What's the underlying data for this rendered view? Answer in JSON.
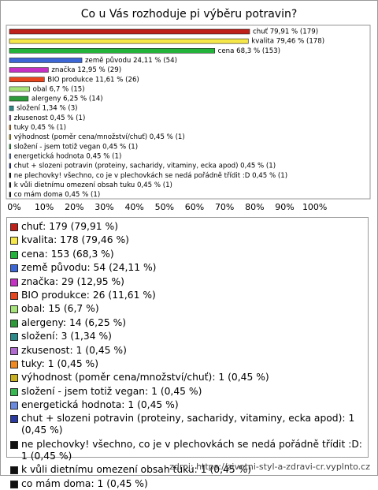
{
  "chart_data": {
    "type": "bar",
    "orientation": "horizontal",
    "title": "Co u Vás rozhoduje pi výběru potravin?",
    "values": [
      79.91,
      79.46,
      68.3,
      24.11,
      12.95,
      11.61,
      6.7,
      6.25,
      1.34,
      0.45,
      0.45,
      0.45,
      0.45,
      0.45,
      0.45,
      0.45,
      0.45,
      0.45
    ],
    "value_labels": [
      "chuť 79,91 % (179)",
      "kvalita 79,46 % (178)",
      "cena 68,3 % (153)",
      "země původu 24,11 % (54)",
      "značka 12,95 % (29)",
      "BIO produkce 11,61 % (26)",
      "obal 6,7 % (15)",
      "alergeny 6,25 % (14)",
      "složení 1,34 % (3)",
      "zkusenost 0,45 % (1)",
      "tuky 0,45 % (1)",
      "výhodnost (poměr cena/množství/chuť) 0,45 % (1)",
      "složení - jsem totiž vegan 0,45 % (1)",
      "energetická hodnota 0,45 % (1)",
      "chut + slozeni potravin (proteiny, sacharidy, vitaminy, ecka apod) 0,45 % (1)",
      "ne plechovky! všechno, co je v plechovkách se nedá pořádně třídit :D 0,45 % (1)",
      "k vůli dietnímu omezení obsah tuku 0,45 % (1)",
      "co mám doma 0,45 % (1)"
    ],
    "legend_labels": [
      "chuť: 179 (79,91 %)",
      "kvalita: 178 (79,46 %)",
      "cena: 153 (68,3 %)",
      "země původu: 54 (24,11 %)",
      "značka: 29 (12,95 %)",
      "BIO produkce: 26 (11,61 %)",
      "obal: 15 (6,7 %)",
      "alergeny: 14 (6,25 %)",
      "složení: 3 (1,34 %)",
      "zkusenost: 1 (0,45 %)",
      "tuky: 1 (0,45 %)",
      "výhodnost (poměr cena/množství/chuť): 1 (0,45 %)",
      "složení - jsem totiž vegan: 1 (0,45 %)",
      "energetická hodnota: 1 (0,45 %)",
      "chut + slozeni potravin (proteiny, sacharidy, vitaminy, ecka apod): 1 (0,45 %)",
      "ne plechovky! všechno, co je v plechovkách se nedá pořádně třídit :D: 1 (0,45 %)",
      "k vůli dietnímu omezení obsah tuku: 1 (0,45 %)",
      "co mám doma: 1 (0,45 %)"
    ],
    "colors": [
      "#c0201a",
      "#f5e64a",
      "#22b33a",
      "#3a66d6",
      "#c531c5",
      "#e8461e",
      "#a5e27a",
      "#2d9a3a",
      "#2d8a8a",
      "#b06ad0",
      "#f08a20",
      "#c8b020",
      "#38b850",
      "#6a8ae0",
      "#2a3aa0",
      "#111111",
      "#111111",
      "#111111"
    ],
    "xlim": [
      0,
      120
    ],
    "xticks": [
      {
        "value": 0,
        "label": "0%"
      },
      {
        "value": 10,
        "label": "10%"
      },
      {
        "value": 20,
        "label": "20%"
      },
      {
        "value": 30,
        "label": "30%"
      },
      {
        "value": 40,
        "label": "40%"
      },
      {
        "value": 50,
        "label": "50%"
      },
      {
        "value": 60,
        "label": "60%"
      },
      {
        "value": 70,
        "label": "70%"
      },
      {
        "value": 80,
        "label": "80%"
      },
      {
        "value": 90,
        "label": "90%"
      },
      {
        "value": 100,
        "label": "100%"
      }
    ],
    "grid": false,
    "source": "zdroj: https://zivotni-styl-a-zdravi-cr.vyplnto.cz"
  }
}
